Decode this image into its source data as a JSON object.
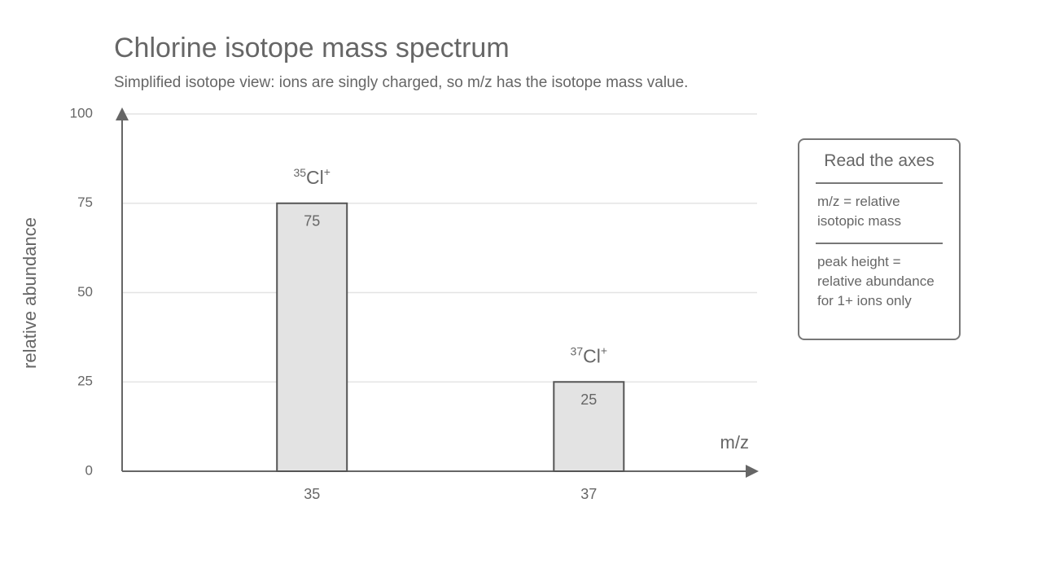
{
  "chart_data": {
    "type": "bar",
    "title": "Chlorine isotope mass spectrum",
    "subtitle": "Simplified isotope view: ions are singly charged, so m/z has the isotope mass value.",
    "x_label": "m/z",
    "y_label": "relative abundance",
    "categories": [
      "35",
      "37"
    ],
    "values": [
      75,
      25
    ],
    "peak_labels": [
      {
        "mass": "35",
        "element": "Cl",
        "charge": "+"
      },
      {
        "mass": "37",
        "element": "Cl",
        "charge": "+"
      }
    ],
    "color": "#e3e3e3",
    "ylim": [
      0,
      100
    ],
    "yticks": [
      0,
      25,
      50,
      75,
      100
    ],
    "grid": true,
    "note_box": {
      "title": "Read the axes",
      "items": [
        "m/z = relative isotopic mass",
        "peak height = relative abundance for 1+ ions only"
      ]
    }
  }
}
